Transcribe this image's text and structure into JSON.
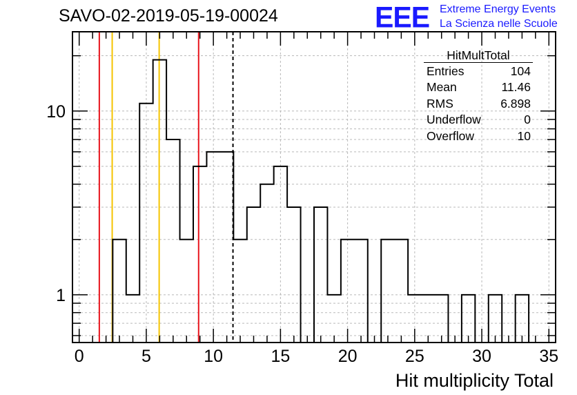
{
  "header": {
    "title": "SAVO-02-2019-05-19-00024",
    "logo_mark": "EEE",
    "logo_line1": "Extreme Energy Events",
    "logo_line2": "La Scienza nelle Scuole"
  },
  "stats": {
    "title": "HitMultTotal",
    "rows": [
      {
        "label": "Entries",
        "value": "104"
      },
      {
        "label": "Mean",
        "value": "11.46"
      },
      {
        "label": "RMS",
        "value": "6.898"
      },
      {
        "label": "Underflow",
        "value": "0"
      },
      {
        "label": "Overflow",
        "value": "10"
      }
    ]
  },
  "chart_data": {
    "type": "histogram",
    "title": "SAVO-02-2019-05-19-00024",
    "xlabel": "Hit multiplicity Total",
    "ylabel": "",
    "xlim": [
      -0.5,
      35.5
    ],
    "ylim": [
      0.55,
      27
    ],
    "yscale": "log",
    "grid": true,
    "x_ticks": [
      "0",
      "5",
      "10",
      "15",
      "20",
      "25",
      "30",
      "35"
    ],
    "y_ticks": [
      "1",
      "10"
    ],
    "bin_width": 1,
    "bin_start": -0.5,
    "counts": [
      0,
      0,
      0,
      2,
      1,
      11,
      19,
      7,
      2,
      5,
      6,
      6,
      2,
      3,
      4,
      5,
      3,
      0,
      3,
      1,
      2,
      2,
      0,
      2,
      2,
      1,
      1,
      1,
      0,
      1,
      0,
      1,
      0,
      1,
      0,
      0
    ],
    "vertical_lines": [
      {
        "x": 1.5,
        "color": "#e8141c",
        "style": "solid"
      },
      {
        "x": 2.46,
        "color": "#f5c400",
        "style": "solid"
      },
      {
        "x": 5.96,
        "color": "#f5c400",
        "style": "solid"
      },
      {
        "x": 8.9,
        "color": "#e8141c",
        "style": "solid"
      },
      {
        "x": 11.46,
        "color": "#000000",
        "style": "dashed"
      }
    ],
    "legend_position": "top-right"
  }
}
